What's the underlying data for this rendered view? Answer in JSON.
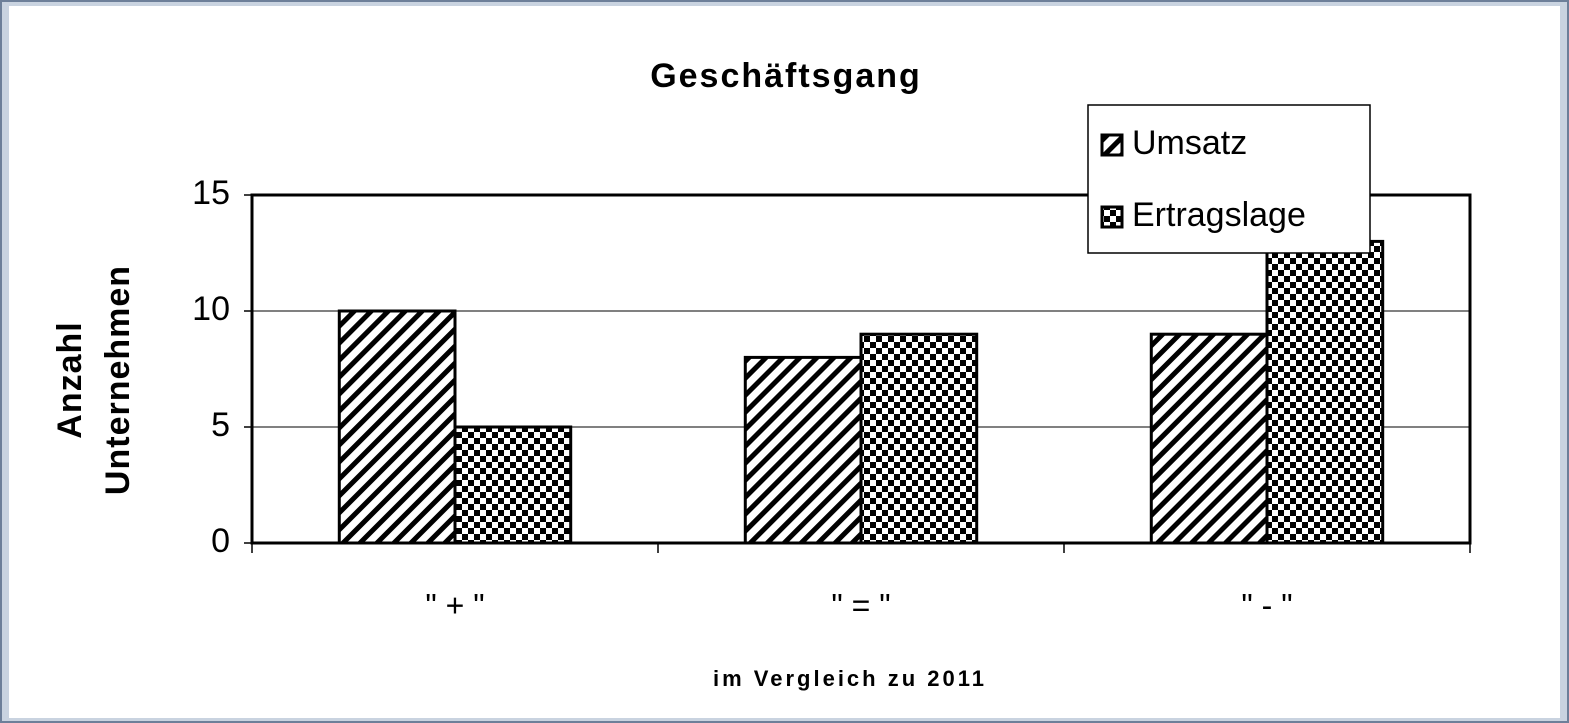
{
  "chart_data": {
    "type": "bar",
    "title": "Geschäftsgang",
    "ylabel": [
      "Anzahl",
      "Unternehmen"
    ],
    "xlabel": "im Vergleich zu 2011",
    "categories": [
      "\" + \"",
      "\" = \"",
      "\" - \""
    ],
    "series": [
      {
        "name": "Umsatz",
        "pattern": "hatch",
        "color": "#000000",
        "values": [
          10,
          8,
          9
        ]
      },
      {
        "name": "Ertragslage",
        "pattern": "checker",
        "color": "#000000",
        "values": [
          5,
          9,
          13
        ]
      }
    ],
    "ylim": [
      0,
      15
    ],
    "yticks": [
      0,
      5,
      10,
      15
    ],
    "grid": true,
    "legend": "top right"
  }
}
